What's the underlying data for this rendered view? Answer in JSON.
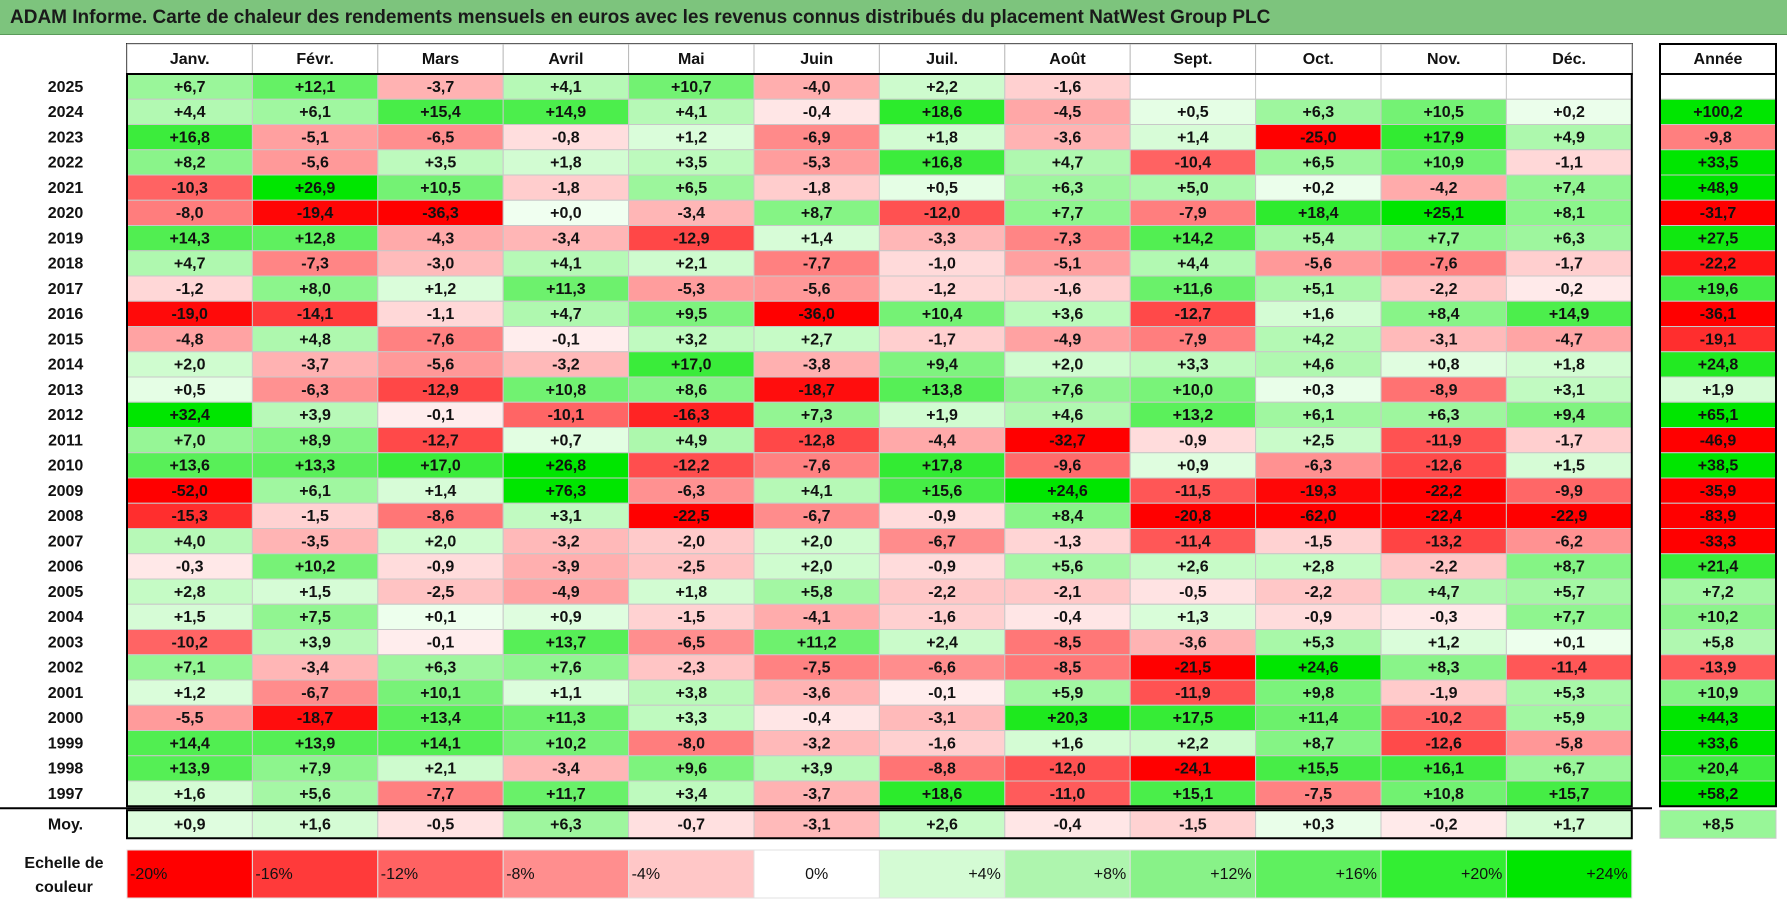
{
  "title": "ADAM Informe. Carte de chaleur des rendements mensuels en euros avec les revenus connus distribués du placement NatWest Group PLC",
  "chart_data": {
    "type": "heatmap",
    "months": [
      "Janv.",
      "Févr.",
      "Mars",
      "Avril",
      "Mai",
      "Juin",
      "Juil.",
      "Août",
      "Sept.",
      "Oct.",
      "Nov.",
      "Déc."
    ],
    "annual_header": "Année",
    "rows": [
      {
        "year": "2025",
        "values": [
          6.7,
          12.1,
          -3.7,
          4.1,
          10.7,
          -4.0,
          2.2,
          -1.6,
          null,
          null,
          null,
          null
        ],
        "annual": null
      },
      {
        "year": "2024",
        "values": [
          4.4,
          6.1,
          15.4,
          14.9,
          4.1,
          -0.4,
          18.6,
          -4.5,
          0.5,
          6.3,
          10.5,
          0.2
        ],
        "annual": 100.2
      },
      {
        "year": "2023",
        "values": [
          16.8,
          -5.1,
          -6.5,
          -0.8,
          1.2,
          -6.9,
          1.8,
          -3.6,
          1.4,
          -25.0,
          17.9,
          4.9
        ],
        "annual": -9.8
      },
      {
        "year": "2022",
        "values": [
          8.2,
          -5.6,
          3.5,
          1.8,
          3.5,
          -5.3,
          16.8,
          4.7,
          -10.4,
          6.5,
          10.9,
          -1.1
        ],
        "annual": 33.5
      },
      {
        "year": "2021",
        "values": [
          -10.3,
          26.9,
          10.5,
          -1.8,
          6.5,
          -1.8,
          0.5,
          6.3,
          5.0,
          0.2,
          -4.2,
          7.4
        ],
        "annual": 48.9
      },
      {
        "year": "2020",
        "values": [
          -8.0,
          -19.4,
          -36.3,
          0.0,
          -3.4,
          8.7,
          -12.0,
          7.7,
          -7.9,
          18.4,
          25.1,
          8.1
        ],
        "annual": -31.7
      },
      {
        "year": "2019",
        "values": [
          14.3,
          12.8,
          -4.3,
          -3.4,
          -12.9,
          1.4,
          -3.3,
          -7.3,
          14.2,
          5.4,
          7.7,
          6.3
        ],
        "annual": 27.5
      },
      {
        "year": "2018",
        "values": [
          4.7,
          -7.3,
          -3.0,
          4.1,
          2.1,
          -7.7,
          -1.0,
          -5.1,
          4.4,
          -5.6,
          -7.6,
          -1.7
        ],
        "annual": -22.2
      },
      {
        "year": "2017",
        "values": [
          -1.2,
          8.0,
          1.2,
          11.3,
          -5.3,
          -5.6,
          -1.2,
          -1.6,
          11.6,
          5.1,
          -2.2,
          -0.2
        ],
        "annual": 19.6
      },
      {
        "year": "2016",
        "values": [
          -19.0,
          -14.1,
          -1.1,
          4.7,
          9.5,
          -36.0,
          10.4,
          3.6,
          -12.7,
          1.6,
          8.4,
          14.9
        ],
        "annual": -36.1
      },
      {
        "year": "2015",
        "values": [
          -4.8,
          4.8,
          -7.6,
          -0.1,
          3.2,
          2.7,
          -1.7,
          -4.9,
          -7.9,
          4.2,
          -3.1,
          -4.7
        ],
        "annual": -19.1
      },
      {
        "year": "2014",
        "values": [
          2.0,
          -3.7,
          -5.6,
          -3.2,
          17.0,
          -3.8,
          9.4,
          2.0,
          3.3,
          4.6,
          0.8,
          1.8
        ],
        "annual": 24.8
      },
      {
        "year": "2013",
        "values": [
          0.5,
          -6.3,
          -12.9,
          10.8,
          8.6,
          -18.7,
          13.8,
          7.6,
          10.0,
          0.3,
          -8.9,
          3.1
        ],
        "annual": 1.9
      },
      {
        "year": "2012",
        "values": [
          32.4,
          3.9,
          -0.1,
          -10.1,
          -16.3,
          7.3,
          1.9,
          4.6,
          13.2,
          6.1,
          6.3,
          9.4
        ],
        "annual": 65.1
      },
      {
        "year": "2011",
        "values": [
          7.0,
          8.9,
          -12.7,
          0.7,
          4.9,
          -12.8,
          -4.4,
          -32.7,
          -0.9,
          2.5,
          -11.9,
          -1.7
        ],
        "annual": -46.9
      },
      {
        "year": "2010",
        "values": [
          13.6,
          13.3,
          17.0,
          26.8,
          -12.2,
          -7.6,
          17.8,
          -9.6,
          0.9,
          -6.3,
          -12.6,
          1.5
        ],
        "annual": 38.5
      },
      {
        "year": "2009",
        "values": [
          -52.0,
          6.1,
          1.4,
          76.3,
          -6.3,
          4.1,
          15.6,
          24.6,
          -11.5,
          -19.3,
          -22.2,
          -9.9
        ],
        "annual": -35.9
      },
      {
        "year": "2008",
        "values": [
          -15.3,
          -1.5,
          -8.6,
          3.1,
          -22.5,
          -6.7,
          -0.9,
          8.4,
          -20.8,
          -62.0,
          -22.4,
          -22.9
        ],
        "annual": -83.9
      },
      {
        "year": "2007",
        "values": [
          4.0,
          -3.5,
          2.0,
          -3.2,
          -2.0,
          2.0,
          -6.7,
          -1.3,
          -11.4,
          -1.5,
          -13.2,
          -6.2
        ],
        "annual": -33.3
      },
      {
        "year": "2006",
        "values": [
          -0.3,
          10.2,
          -0.9,
          -3.9,
          -2.5,
          2.0,
          -0.9,
          5.6,
          2.6,
          2.8,
          -2.2,
          8.7
        ],
        "annual": 21.4
      },
      {
        "year": "2005",
        "values": [
          2.8,
          1.5,
          -2.5,
          -4.9,
          1.8,
          5.8,
          -2.2,
          -2.1,
          -0.5,
          -2.2,
          4.7,
          5.7
        ],
        "annual": 7.2
      },
      {
        "year": "2004",
        "values": [
          1.5,
          7.5,
          0.1,
          0.9,
          -1.5,
          -4.1,
          -1.6,
          -0.4,
          1.3,
          -0.9,
          -0.3,
          7.7
        ],
        "annual": 10.2
      },
      {
        "year": "2003",
        "values": [
          -10.2,
          3.9,
          -0.1,
          13.7,
          -6.5,
          11.2,
          2.4,
          -8.5,
          -3.6,
          5.3,
          1.2,
          0.1
        ],
        "annual": 5.8
      },
      {
        "year": "2002",
        "values": [
          7.1,
          -3.4,
          6.3,
          7.6,
          -2.3,
          -7.5,
          -6.6,
          -8.5,
          -21.5,
          24.6,
          8.3,
          -11.4
        ],
        "annual": -13.9
      },
      {
        "year": "2001",
        "values": [
          1.2,
          -6.7,
          10.1,
          1.1,
          3.8,
          -3.6,
          -0.1,
          5.9,
          -11.9,
          9.8,
          -1.9,
          5.3
        ],
        "annual": 10.9
      },
      {
        "year": "2000",
        "values": [
          -5.5,
          -18.7,
          13.4,
          11.3,
          3.3,
          -0.4,
          -3.1,
          20.3,
          17.5,
          11.4,
          -10.2,
          5.9
        ],
        "annual": 44.3
      },
      {
        "year": "1999",
        "values": [
          14.4,
          13.9,
          14.1,
          10.2,
          -8.0,
          -3.2,
          -1.6,
          1.6,
          2.2,
          8.7,
          -12.6,
          -5.8
        ],
        "annual": 33.6
      },
      {
        "year": "1998",
        "values": [
          13.9,
          7.9,
          2.1,
          -3.4,
          9.6,
          3.9,
          -8.8,
          -12.0,
          -24.1,
          15.5,
          16.1,
          6.7
        ],
        "annual": 20.4
      },
      {
        "year": "1997",
        "values": [
          1.6,
          5.6,
          -7.7,
          11.7,
          3.4,
          -3.7,
          18.6,
          -11.0,
          15.1,
          -7.5,
          10.8,
          15.7
        ],
        "annual": 58.2
      }
    ],
    "average": {
      "label": "Moy.",
      "values": [
        0.9,
        1.6,
        -0.5,
        6.3,
        -0.7,
        -3.1,
        2.6,
        -0.4,
        -1.5,
        0.3,
        -0.2,
        1.7
      ],
      "annual": 8.5
    },
    "scale": {
      "label_line1": "Echelle de",
      "label_line2": "couleur",
      "stops": [
        {
          "label": "-20%",
          "value": -20,
          "color": "#ff0000",
          "align": "left"
        },
        {
          "label": "-16%",
          "value": -16,
          "color": "#ff3a3a",
          "align": "left"
        },
        {
          "label": "-12%",
          "value": -12,
          "color": "#ff6262",
          "align": "left"
        },
        {
          "label": "-8%",
          "value": -8,
          "color": "#ff8e8e",
          "align": "left"
        },
        {
          "label": "-4%",
          "value": -4,
          "color": "#ffc7c7",
          "align": "left"
        },
        {
          "label": "0%",
          "value": 0,
          "color": "#ffffff",
          "align": "center"
        },
        {
          "label": "+4%",
          "value": 4,
          "color": "#d4fbd4",
          "align": "right"
        },
        {
          "label": "+8%",
          "value": 8,
          "color": "#aef5ae",
          "align": "right"
        },
        {
          "label": "+12%",
          "value": 12,
          "color": "#88f288",
          "align": "right"
        },
        {
          "label": "+16%",
          "value": 16,
          "color": "#5ff05f",
          "align": "right"
        },
        {
          "label": "+20%",
          "value": 20,
          "color": "#33ee33",
          "align": "right"
        },
        {
          "label": "+24%",
          "value": 24,
          "color": "#00e600",
          "align": "right"
        }
      ]
    }
  }
}
